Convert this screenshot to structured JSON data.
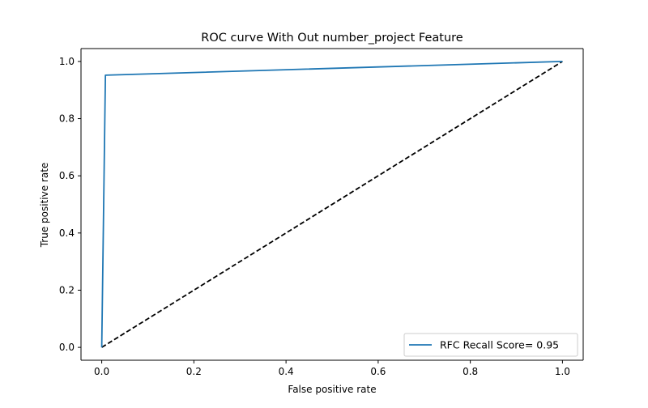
{
  "chart_data": {
    "type": "line",
    "title": "ROC curve With Out number_project Feature",
    "xlabel": "False positive rate",
    "ylabel": "True positive rate",
    "xlim": [
      -0.045,
      1.045
    ],
    "ylim": [
      -0.045,
      1.045
    ],
    "xticks": [
      0.0,
      0.2,
      0.4,
      0.6,
      0.8,
      1.0
    ],
    "yticks": [
      0.0,
      0.2,
      0.4,
      0.6,
      0.8,
      1.0
    ],
    "xtick_labels": [
      "0.0",
      "0.2",
      "0.4",
      "0.6",
      "0.8",
      "1.0"
    ],
    "ytick_labels": [
      "0.0",
      "0.2",
      "0.4",
      "0.6",
      "0.8",
      "1.0"
    ],
    "grid": false,
    "legend_position": "lower-right",
    "series": [
      {
        "name": "RFC Recall Score= 0.95",
        "color": "#1f77b4",
        "style": "solid",
        "x": [
          0.0,
          0.008,
          1.0
        ],
        "y": [
          0.0,
          0.952,
          1.0
        ]
      },
      {
        "name": "",
        "color": "#000000",
        "style": "dashed",
        "x": [
          0.0,
          1.0
        ],
        "y": [
          0.0,
          1.0
        ]
      }
    ]
  }
}
